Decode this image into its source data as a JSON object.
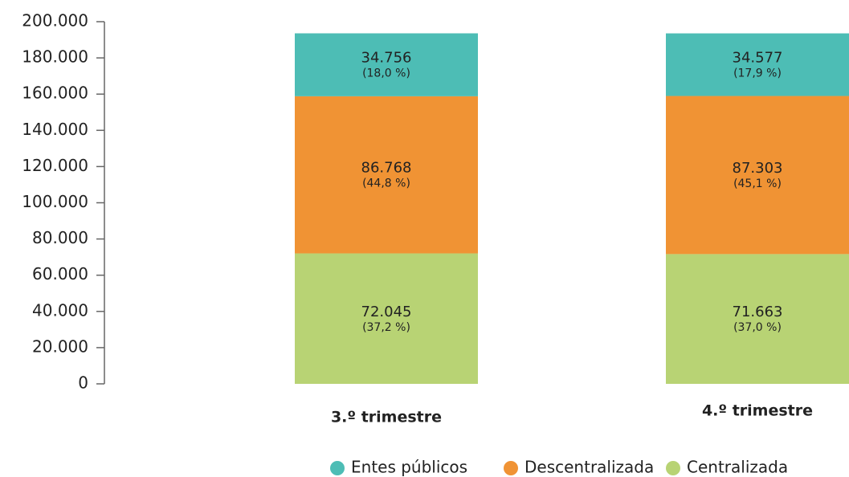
{
  "chart_data": {
    "type": "stacked_bar",
    "categories": [
      "3.º trimestre",
      "4.º trimestre"
    ],
    "series": [
      {
        "name": "Centralizada",
        "color": "#b8d374",
        "values": [
          72045,
          71663
        ],
        "value_labels": [
          "72.045",
          "71.663"
        ],
        "shares": [
          37.2,
          37.0
        ],
        "share_labels": [
          "(37,2 %)",
          "(37,0 %)"
        ]
      },
      {
        "name": "Descentralizada",
        "color": "#f09334",
        "values": [
          86768,
          87303
        ],
        "value_labels": [
          "86.768",
          "87.303"
        ],
        "shares": [
          44.8,
          45.1
        ],
        "share_labels": [
          "(44,8 %)",
          "(45,1 %)"
        ]
      },
      {
        "name": "Entes públicos",
        "color": "#4dbdb5",
        "values": [
          34756,
          34577
        ],
        "value_labels": [
          "34.756",
          "34.577"
        ],
        "shares": [
          18.0,
          17.9
        ],
        "share_labels": [
          "(18,0 %)",
          "(17,9 %)"
        ]
      }
    ],
    "ylim": [
      0,
      200000
    ],
    "yticks": [
      0,
      {
        "value": 20000,
        "label": "20.000"
      },
      {
        "value": 40000,
        "label": "40.000"
      },
      {
        "value": 60000,
        "label": "60.000"
      },
      {
        "value": 80000,
        "label": "80.000"
      },
      {
        "value": 100000,
        "label": "100.000"
      },
      {
        "value": 120000,
        "label": "120.000"
      },
      {
        "value": 140000,
        "label": "140.000"
      },
      {
        "value": 160000,
        "label": "160.000"
      },
      {
        "value": 180000,
        "label": "180.000"
      },
      {
        "value": 200000,
        "label": "200.000"
      }
    ],
    "legend": "bottom",
    "grid": false
  }
}
